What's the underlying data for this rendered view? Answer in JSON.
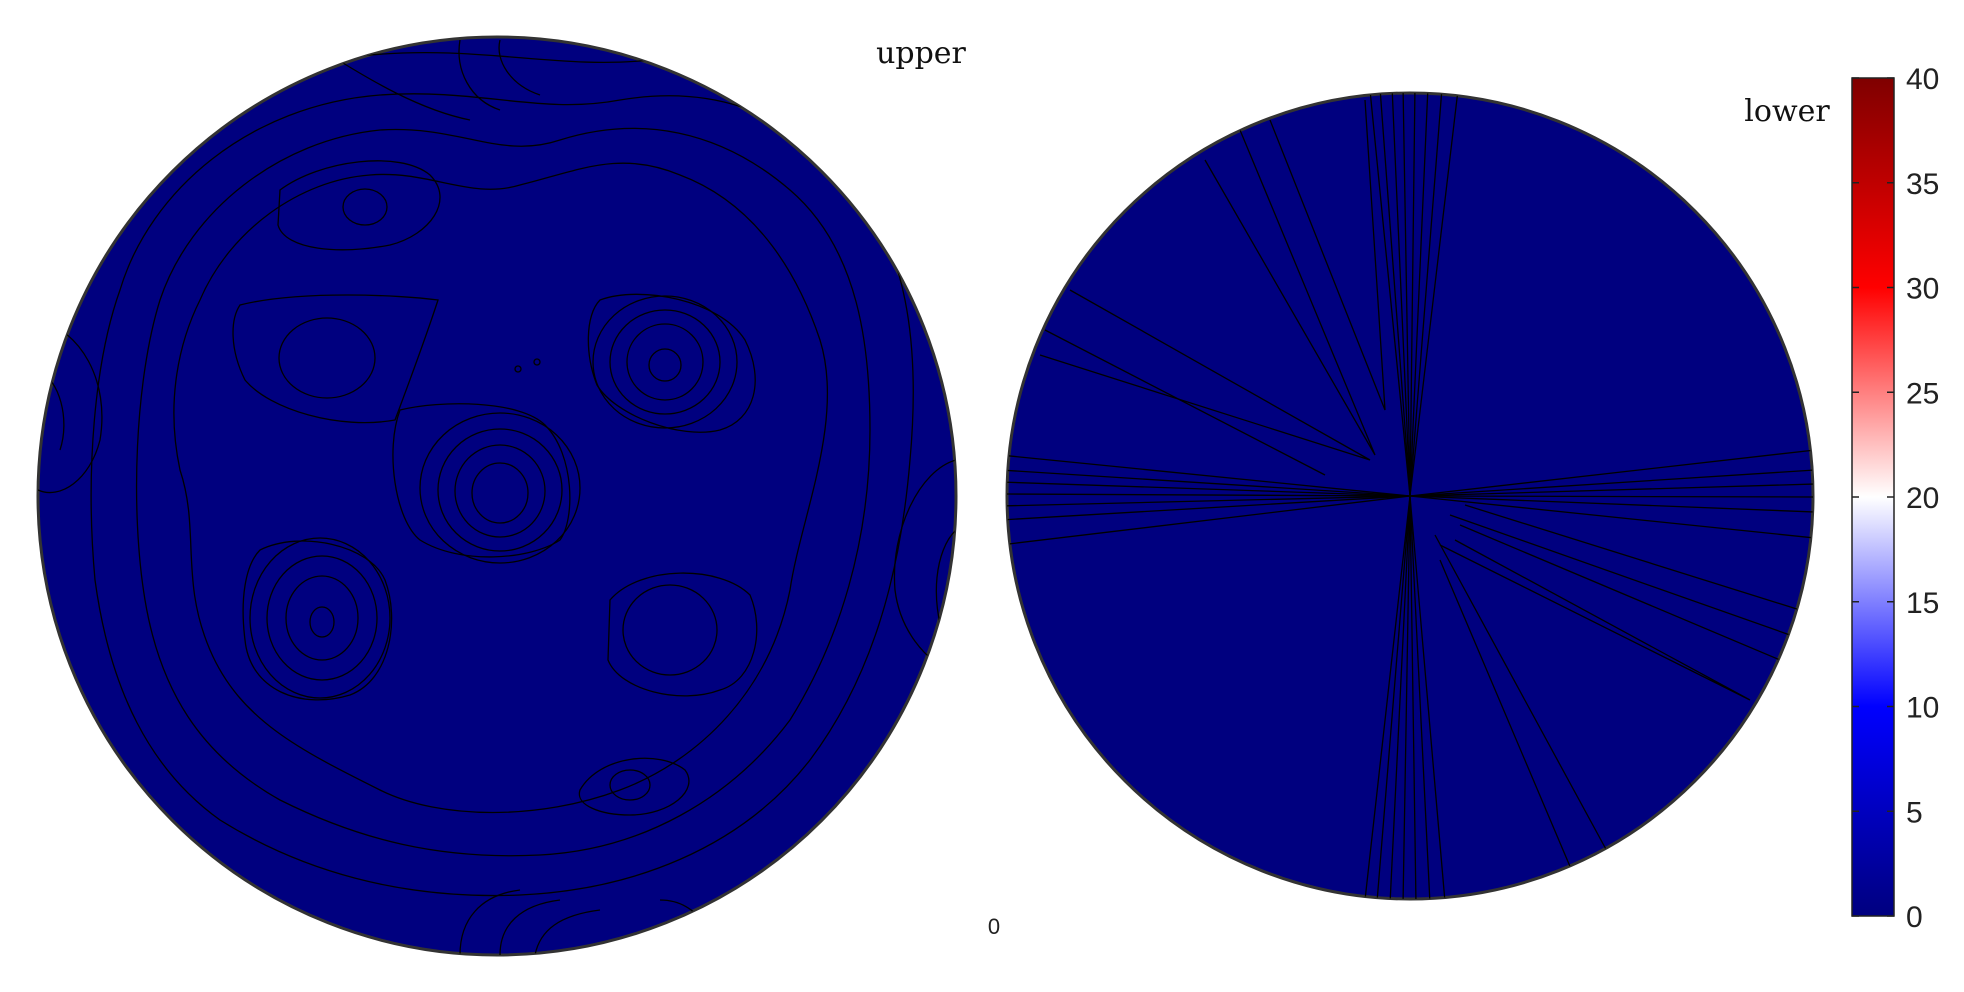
{
  "chart_data": [
    {
      "type": "heatmap",
      "title": "upper",
      "colorbar_min_label": "0",
      "contour_fill_value": 0,
      "contour_color": "#000000",
      "grid": false
    },
    {
      "type": "heatmap",
      "title": "lower",
      "contour_fill_value": 0,
      "contour_color": "#000000",
      "grid": false
    }
  ],
  "colorbar": {
    "range": [
      0,
      40
    ],
    "ticks": [
      "0",
      "5",
      "10",
      "15",
      "20",
      "25",
      "30",
      "35",
      "40"
    ],
    "tick_values": [
      0,
      5,
      10,
      15,
      20,
      25,
      30,
      35,
      40
    ],
    "colormap": [
      "#00007f",
      "#0000ff",
      "#ffffff",
      "#ff0000",
      "#7f0000"
    ],
    "placement": "right"
  },
  "colors": {
    "fill": "#00007f",
    "outline": "#333333",
    "contour": "#000000"
  }
}
